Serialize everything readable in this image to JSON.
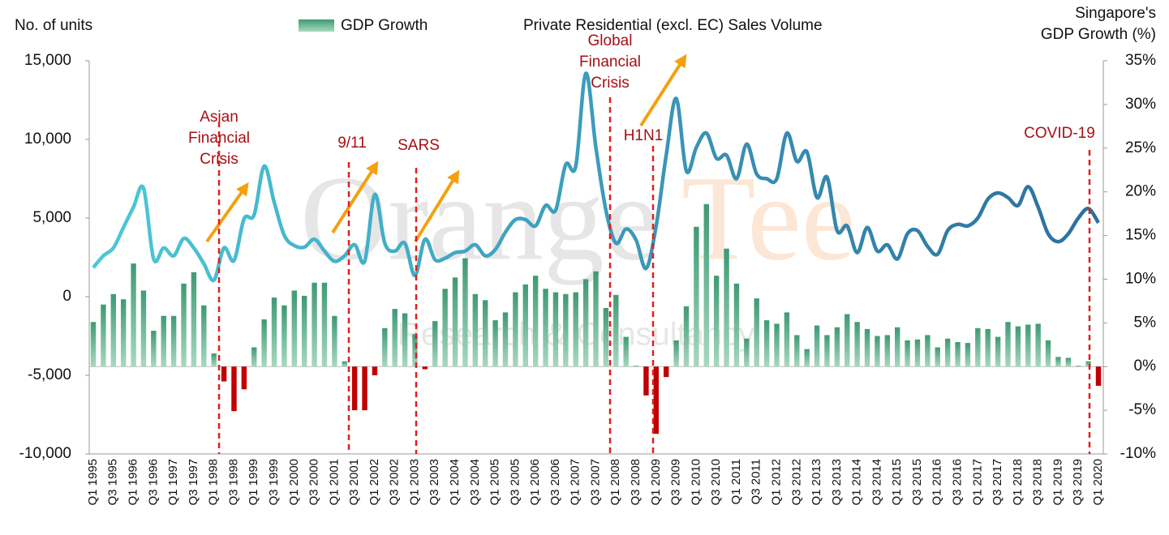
{
  "chart_data": {
    "type": "combo",
    "y_label": "No. of units",
    "y2_label": [
      "Singapore's",
      "GDP Growth (%)"
    ],
    "categories": [
      "Q1 1995",
      null,
      "Q3 1995",
      null,
      "Q1 1996",
      null,
      "Q3 1996",
      null,
      "Q1 1997",
      null,
      "Q3 1997",
      null,
      "Q1 1998",
      null,
      "Q3 1998",
      null,
      "Q1 1999",
      null,
      "Q3 1999",
      null,
      "Q1 2000",
      null,
      "Q3 2000",
      null,
      "Q1 2001",
      null,
      "Q3 2001",
      null,
      "Q1 2002",
      null,
      "Q3 2002",
      null,
      "Q1 2003",
      null,
      "Q3 2003",
      null,
      "Q1 2004",
      null,
      "Q3 2004",
      null,
      "Q1 2005",
      null,
      "Q3 2005",
      null,
      "Q1 2006",
      null,
      "Q3 2006",
      null,
      "Q1 2007",
      null,
      "Q3 2007",
      null,
      "Q1 2008",
      null,
      "Q3 2008",
      null,
      "Q1 2009",
      null,
      "Q3 2009",
      null,
      "Q1 2010",
      null,
      "Q3 2010",
      null,
      "Q1 2011",
      null,
      "Q3 2011",
      null,
      "Q1 2012",
      null,
      "Q3 2012",
      null,
      "Q1 2013",
      null,
      "Q3 2013",
      null,
      "Q1 2014",
      null,
      "Q3 2014",
      null,
      "Q1 2015",
      null,
      "Q3 2015",
      null,
      "Q1 2016",
      null,
      "Q3 2016",
      null,
      "Q1 2017",
      null,
      "Q3 2017",
      null,
      "Q1 2018",
      null,
      "Q3 2018",
      null,
      "Q1 2019",
      null,
      "Q3 2019",
      null,
      "Q1 2020"
    ],
    "series": [
      {
        "name": "GDP Growth",
        "type": "bar",
        "axis": "y2",
        "color": "#55a886",
        "negative_color": "#c00000",
        "values": [
          5.1,
          7.1,
          8.3,
          7.7,
          11.8,
          8.7,
          4.1,
          5.8,
          5.8,
          9.5,
          10.8,
          7.0,
          1.5,
          -1.7,
          -5.1,
          -2.6,
          2.2,
          5.4,
          7.9,
          7.0,
          8.7,
          8.1,
          9.6,
          9.6,
          5.8,
          0.6,
          -5.0,
          -5.0,
          -1.0,
          4.4,
          6.6,
          6.1,
          3.7,
          -0.3,
          5.2,
          8.9,
          10.2,
          12.4,
          8.3,
          7.6,
          5.3,
          6.2,
          8.5,
          9.4,
          10.4,
          8.9,
          8.5,
          8.3,
          8.5,
          10.0,
          10.9,
          6.7,
          8.2,
          3.4,
          0.1,
          -3.3,
          -7.7,
          -1.2,
          3.0,
          6.9,
          16.0,
          18.6,
          10.4,
          13.5,
          9.5,
          3.2,
          7.8,
          5.3,
          4.9,
          6.2,
          3.6,
          2.0,
          4.7,
          3.6,
          4.5,
          6.0,
          5.1,
          4.3,
          3.5,
          3.6,
          4.5,
          3.0,
          3.1,
          3.6,
          2.2,
          3.2,
          2.8,
          2.7,
          4.4,
          4.3,
          3.4,
          5.1,
          4.6,
          4.8,
          4.9,
          3.0,
          1.1,
          1.0,
          0.1,
          0.6,
          -2.2
        ]
      },
      {
        "name": "Private Residential (excl. EC) Sales Volume",
        "type": "line",
        "color": "#3a9cc0",
        "values": [
          1850,
          2600,
          3100,
          4400,
          5700,
          6900,
          2400,
          3100,
          2600,
          3700,
          3100,
          2100,
          1050,
          3100,
          2300,
          4950,
          5200,
          8300,
          6000,
          3900,
          3250,
          3150,
          3650,
          2900,
          2250,
          2600,
          3300,
          2250,
          6500,
          3400,
          2900,
          3400,
          1350,
          3650,
          2350,
          2450,
          2800,
          2900,
          3300,
          2600,
          3000,
          4100,
          4900,
          4900,
          4500,
          5800,
          5500,
          8400,
          8300,
          14200,
          9500,
          5500,
          3400,
          4300,
          3600,
          1800,
          4500,
          9000,
          12600,
          8000,
          9500,
          10400,
          8800,
          9000,
          7500,
          9700,
          7800,
          7500,
          7500,
          10400,
          8600,
          9200,
          6300,
          7600,
          4200,
          4500,
          2800,
          4400,
          2900,
          3300,
          2400,
          4000,
          4200,
          3200,
          2700,
          4200,
          4600,
          4500,
          5000,
          6200,
          6600,
          6300,
          5800,
          7000,
          5700,
          4000,
          3500,
          4000,
          5000,
          5600,
          4700
        ]
      }
    ],
    "ylim": [
      -10000,
      15000
    ],
    "yticks": [
      {
        "value": -10000,
        "label": "-10,000"
      },
      {
        "value": -5000,
        "label": "-5,000"
      },
      0,
      {
        "value": 5000,
        "label": "5,000"
      },
      {
        "value": 10000,
        "label": "10,000"
      },
      {
        "value": 15000,
        "label": "15,000"
      }
    ],
    "y2lim": [
      -10,
      35
    ],
    "y2ticks": [
      {
        "value": -10,
        "label": "-10%"
      },
      {
        "value": -5,
        "label": "-5%"
      },
      {
        "value": 0,
        "label": "0%"
      },
      {
        "value": 5,
        "label": "5%"
      },
      {
        "value": 10,
        "label": "10%"
      },
      {
        "value": 15,
        "label": "15%"
      },
      {
        "value": 20,
        "label": "20%"
      },
      {
        "value": 25,
        "label": "25%"
      },
      {
        "value": 30,
        "label": "30%"
      },
      {
        "value": 35,
        "label": "35%"
      }
    ],
    "annotations": [
      [
        "Asian",
        "Financial",
        "Crisis"
      ],
      [
        "9/11"
      ],
      [
        "SARS"
      ],
      [
        "Global",
        "Financial",
        "Crisis"
      ],
      [
        "H1N1"
      ],
      [
        "COVID-19"
      ]
    ],
    "watermark": [
      "Orange",
      "Tee",
      "Research & Consultancy"
    ]
  }
}
